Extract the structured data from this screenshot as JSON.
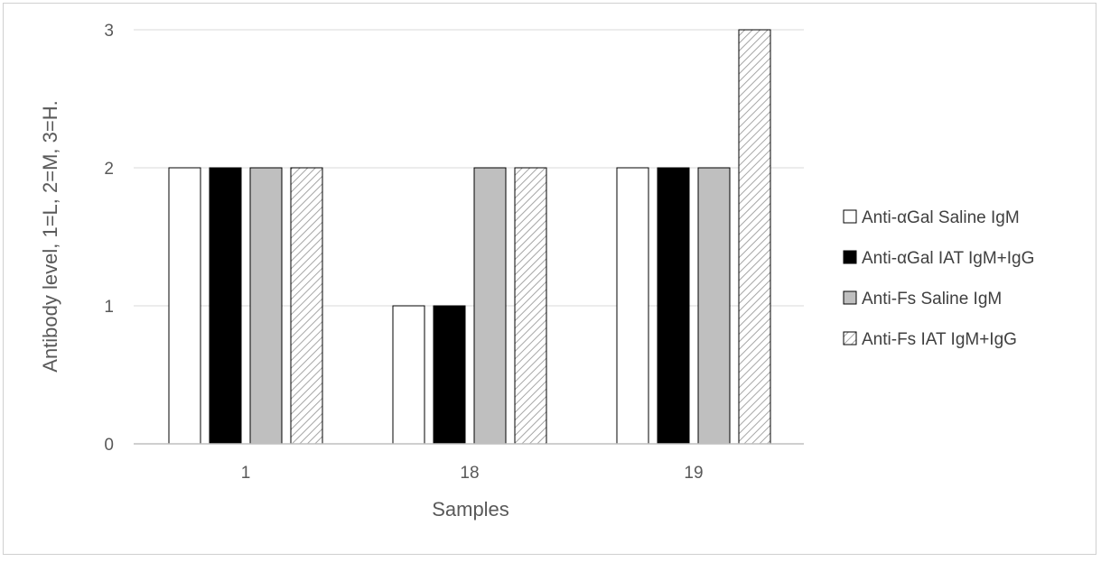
{
  "chart_data": {
    "type": "bar",
    "title": "",
    "xlabel": "Samples",
    "ylabel": "Antibody level, 1=L, 2=M, 3=H.",
    "categories": [
      "1",
      "18",
      "19"
    ],
    "ylim": [
      0,
      3
    ],
    "yticks": [
      "0",
      "1",
      "2",
      "3"
    ],
    "grid": true,
    "legend_position": "right",
    "series": [
      {
        "name": "Anti-αGal Saline IgM",
        "values": [
          2,
          1,
          2
        ],
        "fill": "#ffffff",
        "pattern": "none"
      },
      {
        "name": "Anti-αGal IAT IgM+IgG",
        "values": [
          2,
          1,
          2
        ],
        "fill": "#000000",
        "pattern": "none"
      },
      {
        "name": "Anti-Fs Saline IgM",
        "values": [
          2,
          2,
          2
        ],
        "fill": "#bfbfbf",
        "pattern": "none"
      },
      {
        "name": "Anti-Fs IAT IgM+IgG",
        "values": [
          2,
          2,
          3
        ],
        "fill": "#ffffff",
        "pattern": "diagonal-hatch"
      }
    ],
    "colors": {
      "gridline": "#d9d9d9",
      "axis_line": "#bfbfbf",
      "bar_outline": "#000000",
      "hatch": "#a6a6a6"
    }
  }
}
